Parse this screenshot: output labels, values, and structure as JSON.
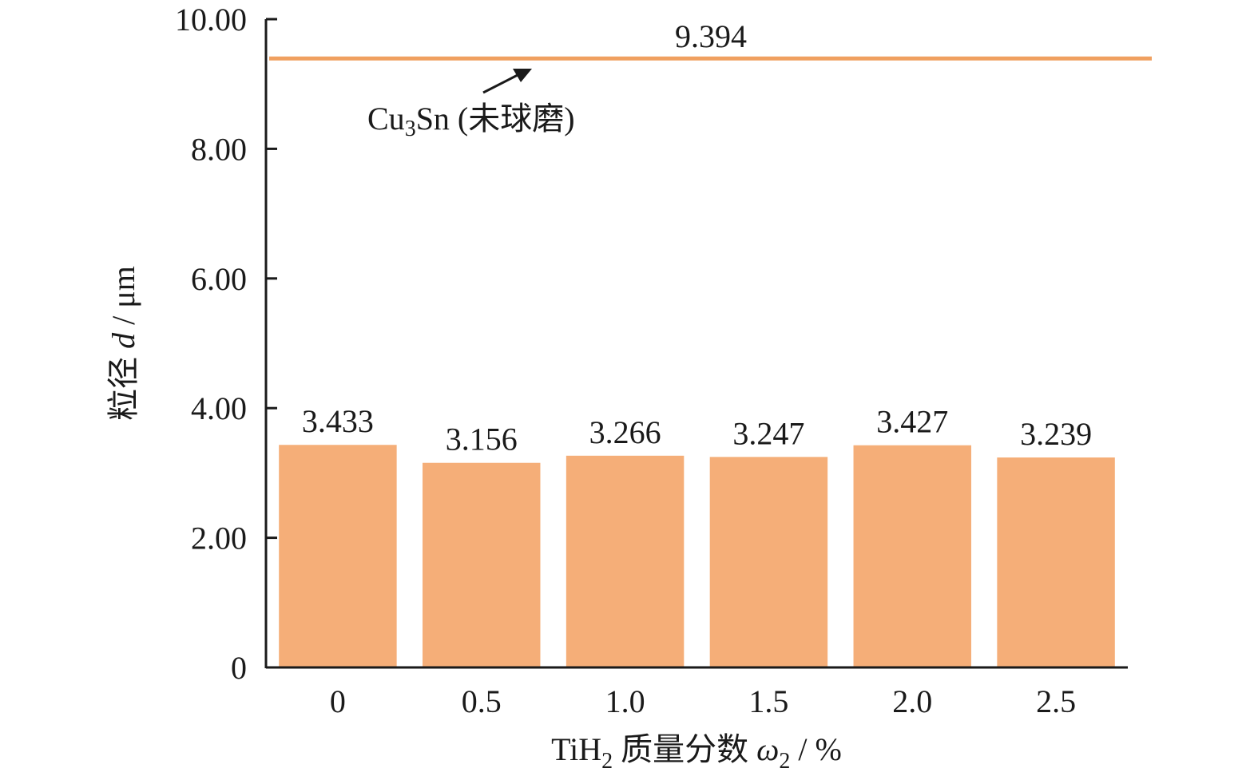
{
  "chart_data": {
    "type": "bar",
    "categories": [
      "0",
      "0.5",
      "1.0",
      "1.5",
      "2.0",
      "2.5"
    ],
    "values": [
      3.433,
      3.156,
      3.266,
      3.247,
      3.427,
      3.239
    ],
    "data_labels": [
      "3.433",
      "3.156",
      "3.266",
      "3.247",
      "3.427",
      "3.239"
    ],
    "ylim": [
      0,
      10
    ],
    "yticks": [
      {
        "value": 0,
        "label": "0"
      },
      {
        "value": 2,
        "label": "2.00"
      },
      {
        "value": 4,
        "label": "4.00"
      },
      {
        "value": 6,
        "label": "6.00"
      },
      {
        "value": 8,
        "label": "8.00"
      },
      {
        "value": 10,
        "label": "10.00"
      }
    ],
    "xlabel": {
      "main": "TiH",
      "sub": "2",
      "rest": " 质量分数 ",
      "var": "ω",
      "var_sub": "2",
      "unit": " / %"
    },
    "ylabel": {
      "main": "粒径 ",
      "var": "d",
      "unit": " / μm"
    },
    "reference_line": {
      "value": 9.394,
      "value_label": "9.394",
      "label_prefix": "Cu",
      "label_sub": "3",
      "label_suffix": "Sn (未球磨)"
    },
    "colors": {
      "bar": "#F5AE78",
      "reference_line": "#F0A060",
      "axis": "#1a1a1a",
      "text": "#1a1a1a"
    },
    "grid": false,
    "legend": "none"
  }
}
